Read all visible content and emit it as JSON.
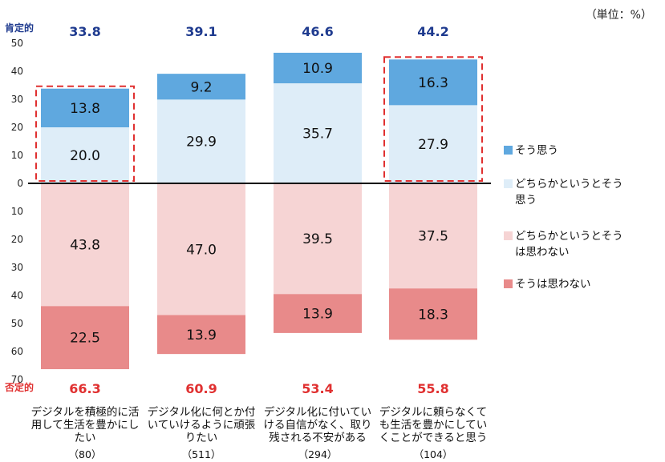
{
  "unit_note": "（単位：%）",
  "chart_data": {
    "type": "bar",
    "stacked": "diverging",
    "categories": [
      "デジタルを積極的に活用して生活を豊かにしたい",
      "デジタル化に何とか付いていけるように頑張りたい",
      "デジタル化に付いていける自信がなく、取り残される不安がある",
      "デジタルに頼らなくても生活を豊かにしていくことができると思う"
    ],
    "category_label_lines": [
      [
        "デジタルを積極的に活",
        "用して生活を豊かにし",
        "たい"
      ],
      [
        "デジタル化に何とか付",
        "いていけるように頑張",
        "りたい"
      ],
      [
        "デジタル化に付いてい",
        "ける自信がなく、取り",
        "残される不安がある"
      ],
      [
        "デジタルに頼らなくて",
        "も生活を豊かにしてい",
        "くことができると思う"
      ]
    ],
    "sample_sizes": [
      "（80）",
      "（511）",
      "（294）",
      "（104）"
    ],
    "positive_label": "肯定的",
    "negative_label": "否定的",
    "positive_totals": [
      "33.8",
      "39.1",
      "46.6",
      "44.2"
    ],
    "negative_totals": [
      "66.3",
      "60.9",
      "53.4",
      "55.8"
    ],
    "series": [
      {
        "name": "そう思う",
        "direction": "up",
        "color": "#5fa8df",
        "values": [
          13.8,
          9.2,
          10.9,
          16.3
        ]
      },
      {
        "name": "どちらかというとそう思う",
        "direction": "up",
        "color": "#deedf8",
        "values": [
          20.0,
          29.9,
          35.7,
          27.9
        ]
      },
      {
        "name": "どちらかというとそうは思わない",
        "direction": "down",
        "color": "#f6d4d4",
        "values": [
          43.8,
          47.0,
          39.5,
          37.5
        ]
      },
      {
        "name": "そうは思わない",
        "direction": "down",
        "color": "#e88a8a",
        "values": [
          22.5,
          13.9,
          13.9,
          18.3
        ]
      }
    ],
    "legend_lines": [
      [
        "そう思う"
      ],
      [
        "どちらかというとそう",
        "思う"
      ],
      [
        "どちらかというとそう",
        "は思わない"
      ],
      [
        "そうは思わない"
      ]
    ],
    "y_ticks_up": [
      "50",
      "40",
      "30",
      "20",
      "10",
      "0"
    ],
    "y_ticks_down": [
      "10",
      "20",
      "30",
      "40",
      "50",
      "60",
      "70"
    ],
    "ylim_up": 50,
    "ylim_down": 70,
    "highlighted_categories": [
      0,
      3
    ],
    "highlight_color": "#e03030",
    "positive_color": "#1f3b8f",
    "negative_color": "#e03030",
    "grid": false,
    "legend_position": "right"
  }
}
